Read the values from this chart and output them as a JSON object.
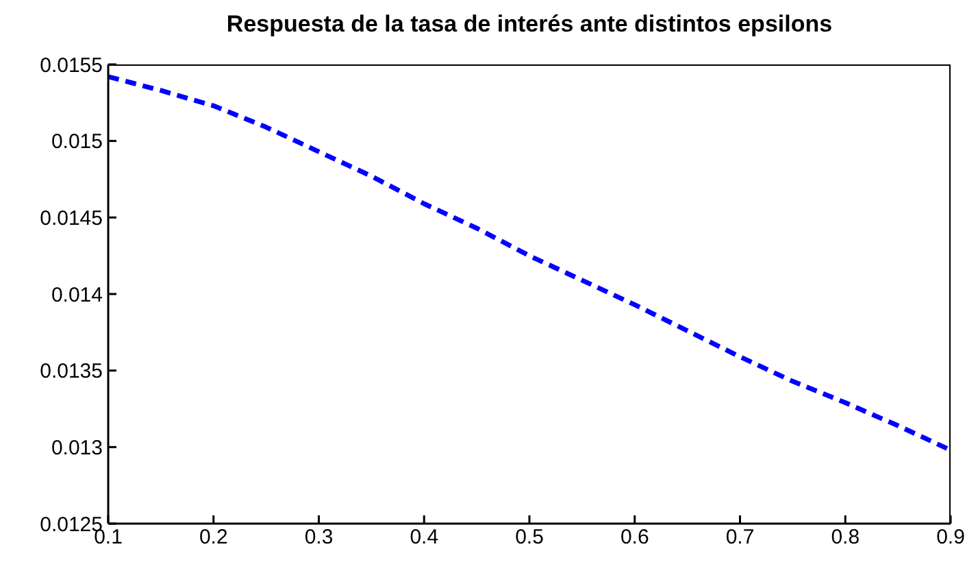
{
  "chart_data": {
    "type": "line",
    "title": "Respuesta de la tasa de interés ante distintos epsilons",
    "x": [
      0.1,
      0.15,
      0.2,
      0.25,
      0.3,
      0.35,
      0.4,
      0.45,
      0.5,
      0.55,
      0.6,
      0.65,
      0.7,
      0.75,
      0.8,
      0.85,
      0.9
    ],
    "series": [
      {
        "color": "#0000ff",
        "values": [
          0.01542,
          0.01533,
          0.01523,
          0.01509,
          0.01493,
          0.01477,
          0.01459,
          0.01443,
          0.01425,
          0.01409,
          0.01393,
          0.01376,
          0.01359,
          0.01343,
          0.01329,
          0.01314,
          0.01298
        ]
      }
    ],
    "xlim": [
      0.1,
      0.9
    ],
    "xticks": [
      0.1,
      0.2,
      0.3,
      0.4,
      0.5,
      0.6,
      0.7,
      0.8,
      0.9
    ],
    "ylim": [
      0.0125,
      0.0155
    ],
    "yticks": [
      0.0125,
      0.013,
      0.0135,
      0.014,
      0.0145,
      0.015,
      0.0155
    ],
    "grid": false,
    "marker": "none",
    "line_style": "dashed"
  }
}
